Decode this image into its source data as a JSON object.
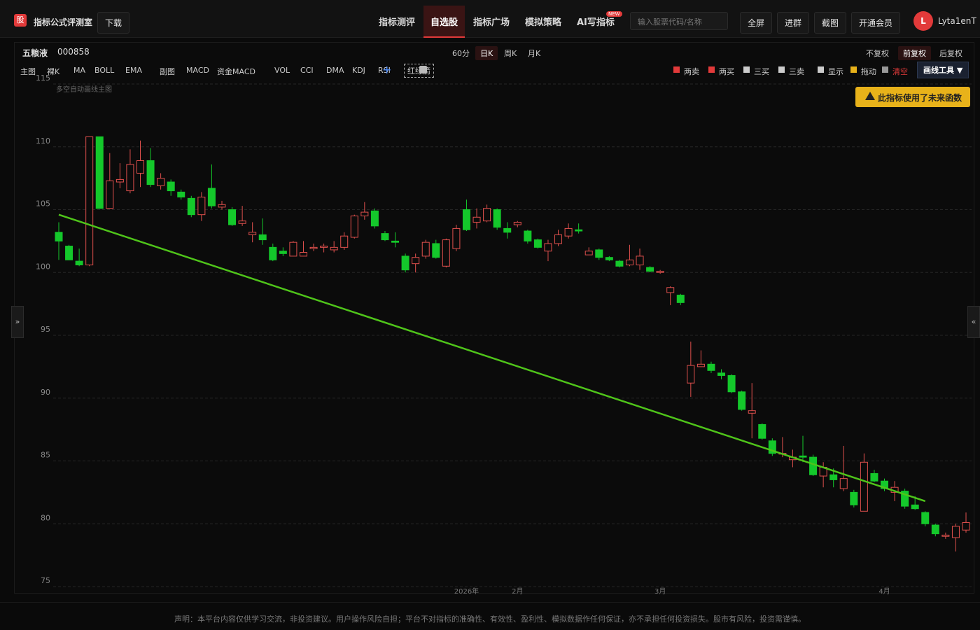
{
  "header": {
    "logo": "股",
    "app_name": "指标公式评测室",
    "download": "下载",
    "nav": [
      "指标测评",
      "自选股",
      "指标广场",
      "模拟策略",
      "AI写指标"
    ],
    "badge": "NEW",
    "search_placeholder": "输入股票代码/名称",
    "buttons": [
      "全屏",
      "进群",
      "截图",
      "开通会员"
    ],
    "avatar": "L",
    "user": "Lyta1enT"
  },
  "stock": {
    "name": "五粮液",
    "code": "000858",
    "periods": [
      "60分",
      "日K",
      "周K",
      "月K"
    ],
    "adjust": [
      "不复权",
      "前复权",
      "后复权"
    ]
  },
  "toolbar": {
    "left": [
      "主图",
      "裸K",
      "MA",
      "BOLL",
      "EMA",
      "副图",
      "MACD",
      "资金MACD",
      "VOL",
      "CCI",
      "DMA",
      "KDJ",
      "RSI",
      "红绿箭"
    ],
    "add": "+",
    "right": [
      "两卖",
      "两买",
      "三买",
      "三卖",
      "显示",
      "拖动",
      "清空"
    ],
    "draw_tools": "画线工具 ▼"
  },
  "chart_data": {
    "type": "candlestick",
    "subtitle": "多空自动画线主图",
    "annotation": "此指标使用了未来函数",
    "ylim": [
      75,
      115
    ],
    "yticks": [
      75,
      80,
      85,
      90,
      95,
      100,
      105,
      110,
      115
    ],
    "grid": true,
    "up_color": "#e0504d",
    "down_color": "#14c82b",
    "categories": [
      null,
      null,
      null,
      null,
      null,
      null,
      null,
      null,
      null,
      null,
      null,
      null,
      null,
      null,
      null,
      null,
      null,
      null,
      null,
      null,
      null,
      null,
      null,
      null,
      null,
      null,
      null,
      null,
      null,
      null,
      null,
      null,
      null,
      null,
      null,
      null,
      null,
      null,
      null,
      null,
      "2026年",
      null,
      null,
      null,
      null,
      "2月",
      null,
      null,
      null,
      null,
      null,
      null,
      null,
      null,
      null,
      null,
      null,
      null,
      null,
      "3月",
      null,
      null,
      null,
      null,
      null,
      null,
      null,
      null,
      null,
      null,
      null,
      null,
      null,
      null,
      null,
      null,
      null,
      null,
      null,
      null,
      null,
      "4月",
      null,
      null,
      null,
      null,
      null,
      null,
      null,
      null
    ],
    "open": [
      103.2,
      102.1,
      100.9,
      100.6,
      110.8,
      105.1,
      107.2,
      106.5,
      107.9,
      108.9,
      106.9,
      107.2,
      106.4,
      105.9,
      104.6,
      106.7,
      105.2,
      105.0,
      103.9,
      103.0,
      103.0,
      102.0,
      101.7,
      101.3,
      101.3,
      101.9,
      102.0,
      101.8,
      102.0,
      102.8,
      104.5,
      104.9,
      103.1,
      102.5,
      101.3,
      100.7,
      101.3,
      102.3,
      100.5,
      101.9,
      105.0,
      104.0,
      104.1,
      105.0,
      103.5,
      103.8,
      103.3,
      102.6,
      101.7,
      102.3,
      102.9,
      103.4,
      101.4,
      101.8,
      101.2,
      100.9,
      100.6,
      100.6,
      100.4,
      100.0,
      98.4,
      98.2,
      91.2,
      92.5,
      92.7,
      92.0,
      91.8,
      90.5,
      88.8,
      87.9,
      86.6,
      85.6,
      85.1,
      85.4,
      85.3,
      83.8,
      83.9,
      82.8,
      82.5,
      81.0,
      84.0,
      83.4,
      82.5,
      82.6,
      81.5,
      80.9,
      79.9,
      79.0,
      78.9,
      79.5
    ],
    "high": [
      104.0,
      102.2,
      101.9,
      110.8,
      110.8,
      109.5,
      108.7,
      109.8,
      110.5,
      109.9,
      107.9,
      107.4,
      106.6,
      106.1,
      106.4,
      108.6,
      105.7,
      105.2,
      105.3,
      104.0,
      104.3,
      102.3,
      102.0,
      102.5,
      102.5,
      102.3,
      102.3,
      102.5,
      103.2,
      104.6,
      105.6,
      105.1,
      103.3,
      103.2,
      101.5,
      101.5,
      102.6,
      102.6,
      102.7,
      103.8,
      105.8,
      105.1,
      105.4,
      105.1,
      104.0,
      104.1,
      103.4,
      102.7,
      102.6,
      103.4,
      103.9,
      103.9,
      102.0,
      101.9,
      101.3,
      101.0,
      102.2,
      101.9,
      100.5,
      100.2,
      98.9,
      98.3,
      94.5,
      93.8,
      92.9,
      92.3,
      91.9,
      90.6,
      91.2,
      88.0,
      86.8,
      86.9,
      85.9,
      87.0,
      85.5,
      84.9,
      84.4,
      86.2,
      82.7,
      85.6,
      84.3,
      83.6,
      83.4,
      82.8,
      82.2,
      81.0,
      80.0,
      79.3,
      80.0,
      80.9
    ],
    "low": [
      101.0,
      101.0,
      100.5,
      100.5,
      105.1,
      105.1,
      106.7,
      106.3,
      106.8,
      106.8,
      106.6,
      106.1,
      105.8,
      104.4,
      104.1,
      105.1,
      105.0,
      103.7,
      103.7,
      102.4,
      102.2,
      100.9,
      101.3,
      101.3,
      101.3,
      101.7,
      101.6,
      101.6,
      101.8,
      102.7,
      104.2,
      103.5,
      102.5,
      102.0,
      100.0,
      100.0,
      101.1,
      101.1,
      100.4,
      101.7,
      103.3,
      103.5,
      104.0,
      103.4,
      102.7,
      103.6,
      102.3,
      101.9,
      100.9,
      102.1,
      102.7,
      103.1,
      101.4,
      101.0,
      100.9,
      100.4,
      100.5,
      100.2,
      100.0,
      99.9,
      97.4,
      97.4,
      90.1,
      92.5,
      92.0,
      91.5,
      90.4,
      89.0,
      86.8,
      86.7,
      85.4,
      85.3,
      84.5,
      84.9,
      83.8,
      82.9,
      82.9,
      82.6,
      81.3,
      81.0,
      83.3,
      82.6,
      81.8,
      81.2,
      81.1,
      79.8,
      79.0,
      78.8,
      77.8,
      79.3
    ],
    "close": [
      102.5,
      101.0,
      100.6,
      110.8,
      105.1,
      107.3,
      107.4,
      108.6,
      108.9,
      107.0,
      107.5,
      106.5,
      106.0,
      104.6,
      106.0,
      105.3,
      105.4,
      103.8,
      104.1,
      103.2,
      102.6,
      101.0,
      101.5,
      102.4,
      101.6,
      102.0,
      102.1,
      102.0,
      102.9,
      104.5,
      104.8,
      103.7,
      102.6,
      102.4,
      100.2,
      101.2,
      102.4,
      101.2,
      102.6,
      103.5,
      103.4,
      104.4,
      105.1,
      103.6,
      103.2,
      104.0,
      102.5,
      102.0,
      102.3,
      103.0,
      103.5,
      103.3,
      101.7,
      101.2,
      101.0,
      100.5,
      101.0,
      101.3,
      100.1,
      100.1,
      98.8,
      97.6,
      92.6,
      92.7,
      92.2,
      91.8,
      90.5,
      89.1,
      89.0,
      86.8,
      85.6,
      85.6,
      85.3,
      85.3,
      83.9,
      84.5,
      83.5,
      83.6,
      81.5,
      84.9,
      83.4,
      82.8,
      82.9,
      81.4,
      81.2,
      80.0,
      79.2,
      79.1,
      79.8,
      80.1
    ],
    "trend_line": {
      "color": "#4fc41a",
      "x": [
        0,
        85
      ],
      "values": [
        104.6,
        81.8
      ]
    }
  },
  "footer": "声明：本平台内容仅供学习交流，非投资建议。用户操作风险自担；平台不对指标的准确性、有效性、盈利性、模拟数据作任何保证，亦不承担任何投资损失。股市有风险，投资需谨慎。"
}
